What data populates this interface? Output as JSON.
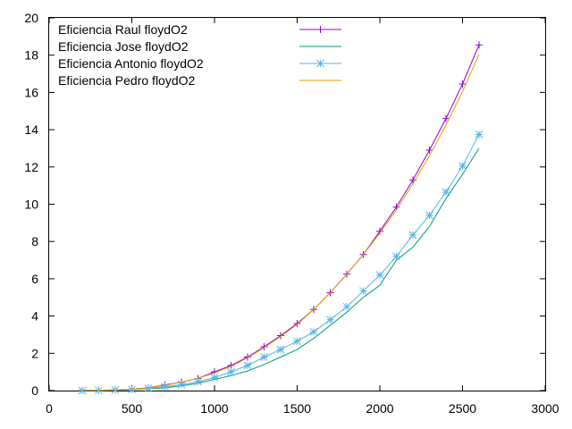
{
  "chart_data": {
    "type": "line",
    "title": "",
    "xlabel": "",
    "ylabel": "",
    "xlim": [
      0,
      3000
    ],
    "ylim": [
      0,
      20
    ],
    "xticks": [
      0,
      500,
      1000,
      1500,
      2000,
      2500,
      3000
    ],
    "yticks": [
      0,
      2,
      4,
      6,
      8,
      10,
      12,
      14,
      16,
      18,
      20
    ],
    "x_tick_labels": [
      "0",
      "500",
      "1000",
      "1500",
      "2000",
      "2500",
      "3000"
    ],
    "y_tick_labels": [
      "0",
      "2",
      "4",
      "6",
      "8",
      "10",
      "12",
      "14",
      "16",
      "18",
      "20"
    ],
    "grid": false,
    "legend_position": "top-left",
    "x": [
      200,
      300,
      400,
      500,
      600,
      700,
      800,
      900,
      1000,
      1100,
      1200,
      1300,
      1400,
      1500,
      1600,
      1700,
      1800,
      1900,
      2000,
      2100,
      2200,
      2300,
      2400,
      2500,
      2600
    ],
    "series": [
      {
        "name": "Eficiencia Raul floydO2",
        "color": "#9400d3",
        "marker": "plus",
        "values": [
          0.01,
          0.02,
          0.04,
          0.08,
          0.15,
          0.3,
          0.45,
          0.65,
          1.0,
          1.35,
          1.8,
          2.35,
          2.95,
          3.6,
          4.35,
          5.25,
          6.25,
          7.3,
          8.55,
          9.85,
          11.3,
          12.9,
          14.6,
          16.45,
          18.55
        ]
      },
      {
        "name": "Eficiencia Jose floydO2",
        "color": "#009e73",
        "marker": "none",
        "values": [
          0.0,
          0.0,
          0.02,
          0.05,
          0.1,
          0.15,
          0.25,
          0.4,
          0.6,
          0.8,
          1.05,
          1.4,
          1.8,
          2.2,
          2.8,
          3.5,
          4.2,
          5.0,
          5.65,
          7.0,
          7.7,
          8.8,
          10.3,
          11.6,
          13.0
        ]
      },
      {
        "name": "Eficiencia Antonio floydO2",
        "color": "#56b4e9",
        "marker": "star",
        "values": [
          0.0,
          0.01,
          0.03,
          0.06,
          0.12,
          0.2,
          0.32,
          0.48,
          0.7,
          1.0,
          1.35,
          1.8,
          2.2,
          2.65,
          3.15,
          3.8,
          4.5,
          5.35,
          6.2,
          7.2,
          8.35,
          9.4,
          10.65,
          12.05,
          13.75
        ]
      },
      {
        "name": "Eficiencia Pedro floydO2",
        "color": "#e69f00",
        "marker": "none",
        "values": [
          0.01,
          0.02,
          0.04,
          0.08,
          0.15,
          0.28,
          0.45,
          0.65,
          0.95,
          1.3,
          1.75,
          2.3,
          2.9,
          3.55,
          4.35,
          5.25,
          6.25,
          7.3,
          8.45,
          9.7,
          11.1,
          12.6,
          14.25,
          16.05,
          18.05
        ]
      }
    ]
  }
}
